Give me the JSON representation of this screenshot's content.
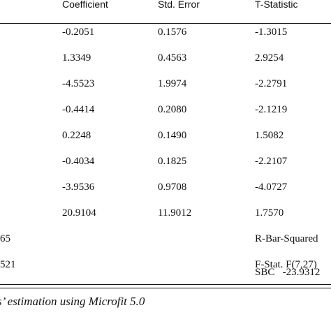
{
  "table": {
    "headers": {
      "coefficient": "Coefficient",
      "std_error": "Std. Error",
      "t_statistic": "T-Statistic"
    },
    "rows": [
      {
        "coefficient": "-0.2051",
        "std_error": "0.1576",
        "t_statistic": "-1.3015"
      },
      {
        "coefficient": "1.3349",
        "std_error": "0.4563",
        "t_statistic": "2.9254"
      },
      {
        "coefficient": "-4.5523",
        "std_error": "1.9974",
        "t_statistic": "-2.2791"
      },
      {
        "coefficient": "-0.4414",
        "std_error": "0.2080",
        "t_statistic": "-2.1219"
      },
      {
        "coefficient": "0.2248",
        "std_error": "0.1490",
        "t_statistic": "1.5082"
      },
      {
        "coefficient": "-0.4034",
        "std_error": "0.1825",
        "t_statistic": "-2.2107"
      },
      {
        "coefficient": "-3.9536",
        "std_error": "0.9708",
        "t_statistic": "-4.0727"
      },
      {
        "coefficient": "20.9104",
        "std_error": "11.9012",
        "t_statistic": "1.7570"
      }
    ],
    "stats": [
      {
        "left": "65",
        "right": "R-Bar-Squared"
      },
      {
        "left": "521",
        "right": "F-Stat. F(7,27)"
      },
      {
        "left": "",
        "right": "SBC   -23.9312"
      }
    ]
  },
  "caption": "s’ estimation using Microfit 5.0"
}
